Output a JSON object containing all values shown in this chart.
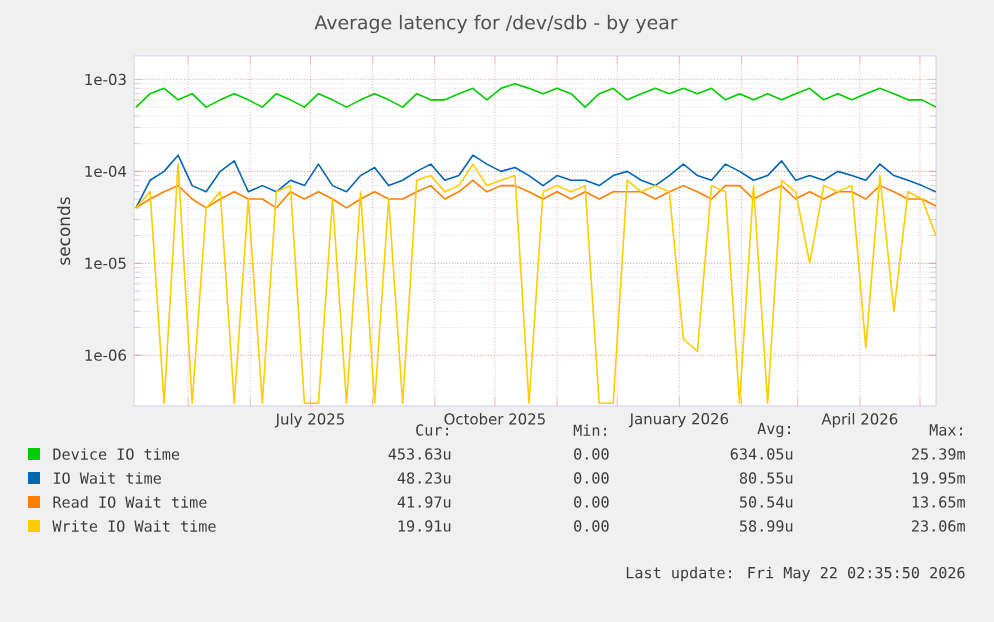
{
  "chart_data": {
    "type": "line",
    "title": "Average latency for /dev/sdb - by year",
    "ylabel": "seconds",
    "log": true,
    "grid": true,
    "legend": "bottom",
    "marker": "none",
    "line_style": "solid",
    "xlim": [
      "2025-04-04",
      "2026-05-09"
    ],
    "ylim": [
      2.8e-07,
      0.0018
    ],
    "xticks": [
      {
        "value": "2025-05-01",
        "label": null
      },
      {
        "value": "2025-06-01",
        "label": null
      },
      {
        "value": "2025-07-01",
        "label": "July 2025"
      },
      {
        "value": "2025-08-01",
        "label": null
      },
      {
        "value": "2025-09-01",
        "label": null
      },
      {
        "value": "2025-10-01",
        "label": "October 2025"
      },
      {
        "value": "2025-11-01",
        "label": null
      },
      {
        "value": "2025-12-01",
        "label": null
      },
      {
        "value": "2026-01-01",
        "label": "January 2026"
      },
      {
        "value": "2026-02-01",
        "label": null
      },
      {
        "value": "2026-03-01",
        "label": null
      },
      {
        "value": "2026-04-01",
        "label": "April 2026"
      },
      {
        "value": "2026-05-01",
        "label": null
      }
    ],
    "yticks": [
      {
        "value": 1e-06,
        "label": "1e-06"
      },
      {
        "value": 1e-05,
        "label": "1e-05"
      },
      {
        "value": 0.0001,
        "label": "1e-04"
      },
      {
        "value": 0.001,
        "label": "1e-03"
      }
    ],
    "x": [
      "2025-04-05",
      "2025-04-12",
      "2025-04-19",
      "2025-04-26",
      "2025-05-03",
      "2025-05-10",
      "2025-05-17",
      "2025-05-24",
      "2025-05-31",
      "2025-06-07",
      "2025-06-14",
      "2025-06-21",
      "2025-06-28",
      "2025-07-05",
      "2025-07-12",
      "2025-07-19",
      "2025-07-26",
      "2025-08-02",
      "2025-08-09",
      "2025-08-16",
      "2025-08-23",
      "2025-08-30",
      "2025-09-06",
      "2025-09-13",
      "2025-09-20",
      "2025-09-27",
      "2025-10-04",
      "2025-10-11",
      "2025-10-18",
      "2025-10-25",
      "2025-11-01",
      "2025-11-08",
      "2025-11-15",
      "2025-11-22",
      "2025-11-29",
      "2025-12-06",
      "2025-12-13",
      "2025-12-20",
      "2025-12-27",
      "2026-01-03",
      "2026-01-10",
      "2026-01-17",
      "2026-01-24",
      "2026-01-31",
      "2026-02-07",
      "2026-02-14",
      "2026-02-21",
      "2026-02-28",
      "2026-03-07",
      "2026-03-14",
      "2026-03-21",
      "2026-03-28",
      "2026-04-04",
      "2026-04-11",
      "2026-04-18",
      "2026-04-25",
      "2026-05-02",
      "2026-05-09"
    ],
    "series": [
      {
        "name": "Device IO time",
        "color": "#00cc00",
        "values": [
          0.0005,
          0.0007,
          0.0008,
          0.0006,
          0.0007,
          0.0005,
          0.0006,
          0.0007,
          0.0006,
          0.0005,
          0.0007,
          0.0006,
          0.0005,
          0.0007,
          0.0006,
          0.0005,
          0.0006,
          0.0007,
          0.0006,
          0.0005,
          0.0007,
          0.0006,
          0.0006,
          0.0007,
          0.0008,
          0.0006,
          0.0008,
          0.0009,
          0.0008,
          0.0007,
          0.0008,
          0.0007,
          0.0005,
          0.0007,
          0.0008,
          0.0006,
          0.0007,
          0.0008,
          0.0007,
          0.0008,
          0.0007,
          0.0008,
          0.0006,
          0.0007,
          0.0006,
          0.0007,
          0.0006,
          0.0007,
          0.0008,
          0.0006,
          0.0007,
          0.0006,
          0.0007,
          0.0008,
          0.0007,
          0.0006,
          0.0006,
          0.0005
        ]
      },
      {
        "name": "IO Wait time",
        "color": "#0066b3",
        "values": [
          4e-05,
          8e-05,
          0.0001,
          0.00015,
          7e-05,
          6e-05,
          0.0001,
          0.00013,
          6e-05,
          7e-05,
          6e-05,
          8e-05,
          7e-05,
          0.00012,
          7e-05,
          6e-05,
          9e-05,
          0.00011,
          7e-05,
          8e-05,
          0.0001,
          0.00012,
          8e-05,
          9e-05,
          0.00015,
          0.00012,
          0.0001,
          0.00011,
          9e-05,
          7e-05,
          9e-05,
          8e-05,
          8e-05,
          7e-05,
          9e-05,
          0.0001,
          8e-05,
          7e-05,
          9e-05,
          0.00012,
          9e-05,
          8e-05,
          0.00012,
          0.0001,
          8e-05,
          9e-05,
          0.00013,
          8e-05,
          9e-05,
          8e-05,
          0.0001,
          9e-05,
          8e-05,
          0.00012,
          9e-05,
          8e-05,
          7e-05,
          6e-05
        ]
      },
      {
        "name": "Read IO Wait time",
        "color": "#ff8000",
        "values": [
          4e-05,
          5e-05,
          6e-05,
          7e-05,
          5e-05,
          4e-05,
          5e-05,
          6e-05,
          5e-05,
          5e-05,
          4e-05,
          6e-05,
          5e-05,
          6e-05,
          5e-05,
          4e-05,
          5e-05,
          6e-05,
          5e-05,
          5e-05,
          6e-05,
          7e-05,
          5e-05,
          6e-05,
          8e-05,
          6e-05,
          7e-05,
          7e-05,
          6e-05,
          5e-05,
          6e-05,
          5e-05,
          6e-05,
          5e-05,
          6e-05,
          6e-05,
          6e-05,
          5e-05,
          6e-05,
          7e-05,
          6e-05,
          5e-05,
          7e-05,
          7e-05,
          5e-05,
          6e-05,
          7e-05,
          5e-05,
          6e-05,
          5e-05,
          6e-05,
          6e-05,
          5e-05,
          7e-05,
          6e-05,
          5e-05,
          5e-05,
          4.2e-05
        ]
      },
      {
        "name": "Write IO Wait time",
        "color": "#ffcc00",
        "values": [
          4e-05,
          6e-05,
          3e-07,
          0.00012,
          3e-07,
          4e-05,
          6e-05,
          3e-07,
          5e-05,
          3e-07,
          6e-05,
          7e-05,
          3e-07,
          3e-07,
          5e-05,
          3e-07,
          6e-05,
          3e-07,
          5e-05,
          3e-07,
          8e-05,
          9e-05,
          6e-05,
          7e-05,
          0.00012,
          7e-05,
          8e-05,
          9e-05,
          3e-07,
          6e-05,
          7e-05,
          6e-05,
          7e-05,
          3e-07,
          3e-07,
          8e-05,
          6e-05,
          7e-05,
          6e-05,
          1.5e-06,
          1.1e-06,
          7e-05,
          6e-05,
          3e-07,
          7e-05,
          3e-07,
          8e-05,
          6e-05,
          1e-05,
          7e-05,
          6e-05,
          7e-05,
          1.2e-06,
          9e-05,
          3e-06,
          6e-05,
          5e-05,
          2e-05
        ]
      }
    ],
    "annotations": [
      "Cur:",
      "Min:",
      "Avg:",
      "Max:",
      "453.63u",
      "0.00",
      "634.05u",
      "25.39m",
      "48.23u",
      "0.00",
      "80.55u",
      "19.95m",
      "41.97u",
      "0.00",
      "50.54u",
      "13.65m",
      "19.91u",
      "0.00",
      "58.99u",
      "23.06m",
      "Last update: Fri May 22 02:35:50 2026"
    ]
  }
}
